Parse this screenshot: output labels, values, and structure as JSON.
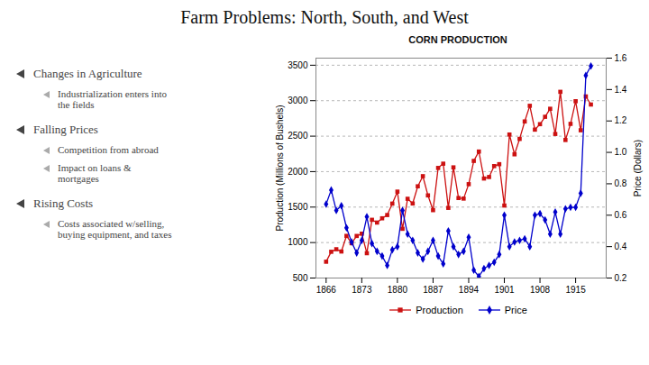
{
  "title": "Farm Problems: North, South, and West",
  "annotations": [
    {
      "text": "Changes in Agriculture",
      "items": [
        "Industrialization enters into\nthe fields"
      ]
    },
    {
      "text": "Falling Prices",
      "items": [
        "Competition from abroad",
        "Impact on loans &\nmortgages"
      ]
    },
    {
      "text": "Rising Costs",
      "items": [
        "Costs associated w/selling,\nbuying equipment, and taxes"
      ]
    }
  ],
  "chart_data": {
    "type": "line",
    "title": "CORN PRODUCTION",
    "ylabel": "Production (Millions of Bushels)",
    "y2label": "Price (Dollars)",
    "x": [
      1866,
      1867,
      1868,
      1869,
      1870,
      1871,
      1872,
      1873,
      1874,
      1875,
      1876,
      1877,
      1878,
      1879,
      1880,
      1881,
      1882,
      1883,
      1884,
      1885,
      1886,
      1887,
      1888,
      1889,
      1890,
      1891,
      1892,
      1893,
      1894,
      1895,
      1896,
      1897,
      1898,
      1899,
      1900,
      1901,
      1902,
      1903,
      1904,
      1905,
      1906,
      1907,
      1908,
      1909,
      1910,
      1911,
      1912,
      1913,
      1914,
      1915,
      1916,
      1917,
      1918
    ],
    "xlim": [
      1864,
      1921
    ],
    "xticks": [
      1866,
      1873,
      1880,
      1887,
      1894,
      1901,
      1908,
      1915
    ],
    "ylim": [
      500,
      3600
    ],
    "yticks": [
      500,
      1000,
      1500,
      2000,
      2500,
      3000,
      3500
    ],
    "y2lim": [
      0.2,
      1.6
    ],
    "y2ticks": [
      0.2,
      0.4,
      0.6,
      0.8,
      {
        "value": 1.0,
        "label": "1.0"
      },
      1.2,
      1.4,
      1.6
    ],
    "grid": true,
    "legend": "bottom",
    "series": [
      {
        "name": "Production",
        "color": "#cc1111",
        "marker": "square",
        "values": [
          730,
          870,
          906,
          874,
          1094,
          991,
          1093,
          1125,
          850,
          1321,
          1282,
          1342,
          1388,
          1549,
          1718,
          1194,
          1617,
          1551,
          1793,
          1936,
          1665,
          1457,
          2052,
          2112,
          1489,
          2060,
          1628,
          1620,
          1823,
          2151,
          2283,
          1903,
          1924,
          2078,
          2105,
          1522,
          2523,
          2244,
          2461,
          2707,
          2928,
          2592,
          2669,
          2773,
          2886,
          2531,
          3125,
          2446,
          2673,
          2993,
          2583,
          3060,
          2946
        ]
      },
      {
        "name": "Price",
        "color": "#0000cc",
        "marker": "diamond",
        "axis": "y2",
        "values": [
          0.67,
          0.76,
          0.63,
          0.66,
          0.52,
          0.43,
          0.36,
          0.44,
          0.59,
          0.42,
          0.37,
          0.34,
          0.28,
          0.38,
          0.4,
          0.63,
          0.48,
          0.44,
          0.36,
          0.32,
          0.37,
          0.44,
          0.34,
          0.29,
          0.5,
          0.4,
          0.35,
          0.37,
          0.46,
          0.25,
          0.21,
          0.26,
          0.28,
          0.3,
          0.35,
          0.6,
          0.4,
          0.43,
          0.44,
          0.45,
          0.4,
          0.6,
          0.61,
          0.57,
          0.48,
          0.62,
          0.48,
          0.64,
          0.65,
          0.65,
          0.74,
          1.49,
          1.55
        ]
      }
    ]
  }
}
